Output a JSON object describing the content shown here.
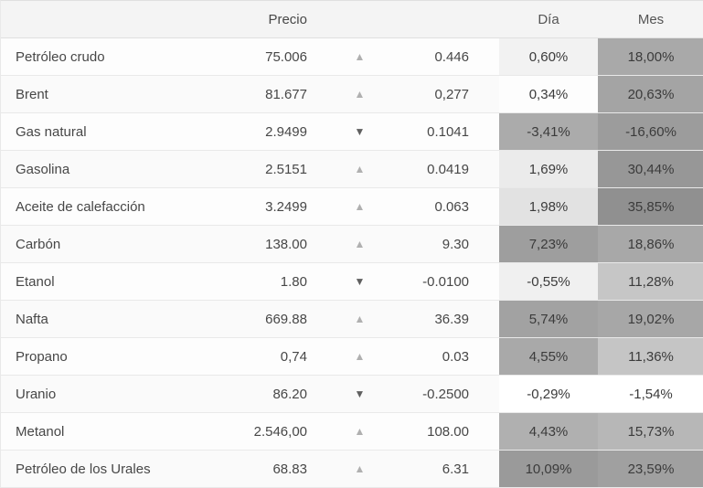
{
  "colors": {
    "header_bg": "#f4f4f4",
    "header_text": "#555555",
    "text": "#474747",
    "percent_text": "#3b3b3b",
    "row_alt_bg": "#fafafa",
    "border_strong": "#e0e0e0",
    "border_soft": "#e9e9e9",
    "arrow_up": "#b0b0b0",
    "arrow_down": "#5f5f5f"
  },
  "icons": {
    "up": "▲",
    "down": "▼"
  },
  "table": {
    "headers": {
      "name": "",
      "price": "Precio",
      "day": "Día",
      "month": "Mes"
    },
    "rows": [
      {
        "name": "Petróleo crudo",
        "price": "75.006",
        "direction": "up",
        "change": "0.446",
        "day": "0,60%",
        "month": "18,00%",
        "day_bg": "#f2f2f2",
        "month_bg": "#a9a9a9"
      },
      {
        "name": "Brent",
        "price": "81.677",
        "direction": "up",
        "change": "0,277",
        "day": "0,34%",
        "month": "20,63%",
        "day_bg": "#fdfdfd",
        "month_bg": "#a4a4a4"
      },
      {
        "name": "Gas natural",
        "price": "2.9499",
        "direction": "down",
        "change": "0.1041",
        "day": "-3,41%",
        "month": "-16,60%",
        "day_bg": "#ababab",
        "month_bg": "#9c9c9c"
      },
      {
        "name": "Gasolina",
        "price": "2.5151",
        "direction": "up",
        "change": "0.0419",
        "day": "1,69%",
        "month": "30,44%",
        "day_bg": "#ebebeb",
        "month_bg": "#979797"
      },
      {
        "name": "Aceite de calefacción",
        "price": "3.2499",
        "direction": "up",
        "change": "0.063",
        "day": "1,98%",
        "month": "35,85%",
        "day_bg": "#e2e2e2",
        "month_bg": "#909090"
      },
      {
        "name": "Carbón",
        "price": "138.00",
        "direction": "up",
        "change": "9.30",
        "day": "7,23%",
        "month": "18,86%",
        "day_bg": "#9e9e9e",
        "month_bg": "#a8a8a8"
      },
      {
        "name": "Etanol",
        "price": "1.80",
        "direction": "down",
        "change": "-0.0100",
        "day": "-0,55%",
        "month": "11,28%",
        "day_bg": "#f0f0f0",
        "month_bg": "#c6c6c6"
      },
      {
        "name": "Nafta",
        "price": "669.88",
        "direction": "up",
        "change": "36.39",
        "day": "5,74%",
        "month": "19,02%",
        "day_bg": "#a2a2a2",
        "month_bg": "#a7a7a7"
      },
      {
        "name": "Propano",
        "price": "0,74",
        "direction": "up",
        "change": "0.03",
        "day": "4,55%",
        "month": "11,36%",
        "day_bg": "#a9a9a9",
        "month_bg": "#c5c5c5"
      },
      {
        "name": "Uranio",
        "price": "86.20",
        "direction": "down",
        "change": "-0.2500",
        "day": "-0,29%",
        "month": "-1,54%",
        "day_bg": "#ffffff",
        "month_bg": "#ffffff"
      },
      {
        "name": "Metanol",
        "price": "2.546,00",
        "direction": "up",
        "change": "108.00",
        "day": "4,43%",
        "month": "15,73%",
        "day_bg": "#b0b0b0",
        "month_bg": "#b7b7b7"
      },
      {
        "name": "Petróleo de los Urales",
        "price": "68.83",
        "direction": "up",
        "change": "6.31",
        "day": "10,09%",
        "month": "23,59%",
        "day_bg": "#9a9a9a",
        "month_bg": "#a0a0a0"
      }
    ]
  }
}
